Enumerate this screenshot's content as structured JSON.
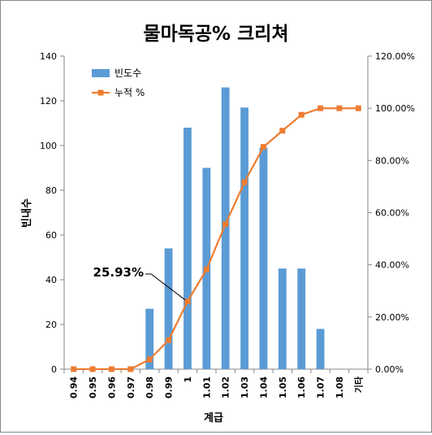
{
  "chart_data": {
    "type": "bar+line",
    "title": "물마독공% 크리쳐",
    "xlabel": "계급",
    "ylabel": "빈내수",
    "y2label": "",
    "categories": [
      "0.94",
      "0.95",
      "0.96",
      "0.97",
      "0.98",
      "0.99",
      "1",
      "1.01",
      "1.02",
      "1.03",
      "1.04",
      "1.05",
      "1.06",
      "1.07",
      "1.08",
      "기타"
    ],
    "ylim": [
      0,
      140
    ],
    "yticks": [
      "0",
      "20",
      "40",
      "60",
      "80",
      "100",
      "120",
      "140"
    ],
    "y2lim": [
      0,
      120
    ],
    "y2ticks": [
      "0.00%",
      "20.00%",
      "40.00%",
      "60.00%",
      "80.00%",
      "100.00%",
      "120.00%"
    ],
    "series": [
      {
        "name": "빈도수",
        "type": "bar",
        "axis": "left",
        "color": "#5b9bd5",
        "values": [
          0,
          0,
          0,
          0,
          27,
          54,
          108,
          90,
          126,
          117,
          99,
          45,
          45,
          18,
          0,
          0
        ]
      },
      {
        "name": "누적 %",
        "type": "line",
        "axis": "right",
        "color": "#ed7d31",
        "values": [
          0,
          0,
          0,
          0,
          3.7,
          11.1,
          25.93,
          38.2,
          55.6,
          71.6,
          85.2,
          91.4,
          97.5,
          100,
          100,
          100
        ]
      }
    ],
    "annotation": {
      "text": "25.93%",
      "category": "1"
    },
    "legend": "top-left",
    "grid": false
  }
}
